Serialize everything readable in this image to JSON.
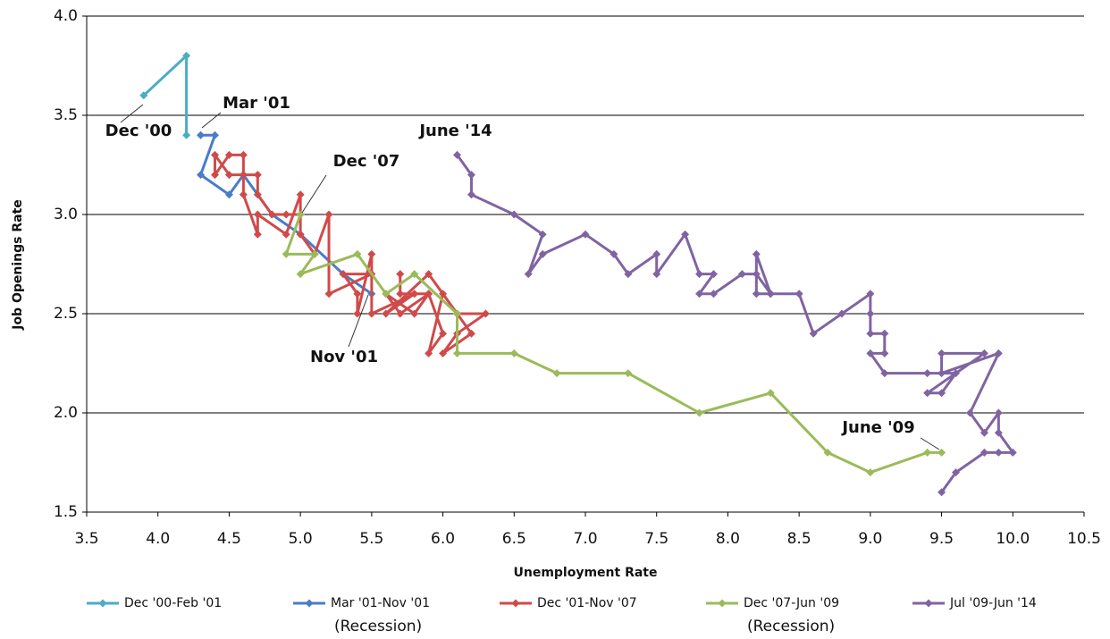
{
  "chart_data": {
    "type": "line",
    "x_label": "Unemployment Rate",
    "y_label": "Job Openings Rate",
    "xlim": [
      3.5,
      10.5
    ],
    "ylim": [
      1.5,
      4.0
    ],
    "xticks": [
      3.5,
      {
        "value": 4,
        "label": "4.0"
      },
      4.5,
      {
        "value": 5,
        "label": "5.0"
      },
      5.5,
      {
        "value": 6,
        "label": "6.0"
      },
      6.5,
      {
        "value": 7,
        "label": "7.0"
      },
      7.5,
      {
        "value": 8,
        "label": "8.0"
      },
      8.5,
      {
        "value": 9,
        "label": "9.0"
      },
      9.5,
      {
        "value": 10,
        "label": "10.0"
      },
      10.5
    ],
    "yticks": [
      1.5,
      {
        "value": 2,
        "label": "2.0"
      },
      2.5,
      {
        "value": 3,
        "label": "3.0"
      },
      3.5,
      {
        "value": 4,
        "label": "4.0"
      }
    ],
    "grid": true,
    "legend": "bottom",
    "annotations": [
      "Dec '00",
      "Mar '01",
      "Dec '07",
      "June '14",
      "Nov '01",
      "June '09"
    ],
    "series": [
      {
        "name": "Dec '00-Feb '01",
        "color": "#4bacc6",
        "x": [
          3.9,
          4.2,
          4.2
        ],
        "values": [
          3.6,
          3.8,
          3.4
        ]
      },
      {
        "name": "Mar '01-Nov '01",
        "note": "(Recession)",
        "color": "#4a7cc7",
        "x": [
          4.3,
          4.4,
          4.3,
          4.5,
          4.6,
          4.8,
          5.0,
          5.3,
          5.5
        ],
        "values": [
          3.4,
          3.4,
          3.2,
          3.1,
          3.2,
          3.0,
          2.9,
          2.7,
          2.6
        ]
      },
      {
        "name": "Dec '01-Nov '07",
        "color": "#d04a4a",
        "x": [
          5.7,
          5.7,
          5.9,
          5.8,
          5.6,
          5.7,
          5.9,
          6.0,
          5.9,
          6.0,
          6.1,
          6.3,
          6.1,
          6.0,
          6.2,
          5.9,
          5.6,
          5.8,
          5.5,
          5.5,
          5.4,
          5.4,
          5.3,
          5.5,
          5.2,
          5.2,
          5.1,
          5.0,
          5.0,
          4.9,
          4.7,
          4.7,
          4.6,
          4.6,
          4.5,
          4.4,
          4.4,
          4.5,
          4.6,
          4.7,
          4.7,
          4.8,
          4.9,
          5.0
        ],
        "values": [
          2.7,
          2.6,
          2.6,
          2.5,
          2.6,
          2.5,
          2.6,
          2.4,
          2.3,
          2.6,
          2.5,
          2.5,
          2.4,
          2.3,
          2.4,
          2.7,
          2.5,
          2.6,
          2.5,
          2.8,
          2.5,
          2.6,
          2.7,
          2.7,
          2.6,
          3.0,
          2.8,
          2.9,
          3.1,
          2.9,
          3.0,
          2.9,
          3.1,
          3.3,
          3.3,
          3.2,
          3.3,
          3.2,
          3.2,
          3.2,
          3.1,
          3.0,
          3.0,
          3.0
        ]
      },
      {
        "name": "Dec '07-Jun '09",
        "note": "(Recession)",
        "color": "#9bbb59",
        "x": [
          5.0,
          4.9,
          5.1,
          5.0,
          5.4,
          5.6,
          5.8,
          6.1,
          6.1,
          6.5,
          6.8,
          7.3,
          7.8,
          8.3,
          8.7,
          9.0,
          9.4,
          9.5
        ],
        "values": [
          3.0,
          2.8,
          2.8,
          2.7,
          2.8,
          2.6,
          2.7,
          2.5,
          2.3,
          2.3,
          2.2,
          2.2,
          2.0,
          2.1,
          1.8,
          1.7,
          1.8,
          1.8
        ]
      },
      {
        "name": "Jul '09-Jun '14",
        "color": "#8064a2",
        "x": [
          9.5,
          9.6,
          9.8,
          9.9,
          10.0,
          9.9,
          9.9,
          9.8,
          9.7,
          9.9,
          9.5,
          9.5,
          9.8,
          9.4,
          9.5,
          9.6,
          9.4,
          9.1,
          9.0,
          9.1,
          9.1,
          9.0,
          9.0,
          9.0,
          8.8,
          8.6,
          8.5,
          8.3,
          8.2,
          8.2,
          8.3,
          8.2,
          8.1,
          7.9,
          7.8,
          7.9,
          7.8,
          7.7,
          7.5,
          7.5,
          7.3,
          7.2,
          7.0,
          6.7,
          6.6,
          6.7,
          6.5,
          6.2,
          6.2,
          6.1
        ],
        "values": [
          1.6,
          1.7,
          1.8,
          1.8,
          1.8,
          1.9,
          2.0,
          1.9,
          2.0,
          2.3,
          2.2,
          2.3,
          2.3,
          2.1,
          2.1,
          2.2,
          2.2,
          2.2,
          2.3,
          2.3,
          2.4,
          2.4,
          2.5,
          2.6,
          2.5,
          2.4,
          2.6,
          2.6,
          2.6,
          2.8,
          2.6,
          2.7,
          2.7,
          2.6,
          2.6,
          2.7,
          2.7,
          2.9,
          2.7,
          2.8,
          2.7,
          2.8,
          2.9,
          2.8,
          2.7,
          2.9,
          3.0,
          3.1,
          3.2,
          3.3
        ]
      }
    ]
  }
}
